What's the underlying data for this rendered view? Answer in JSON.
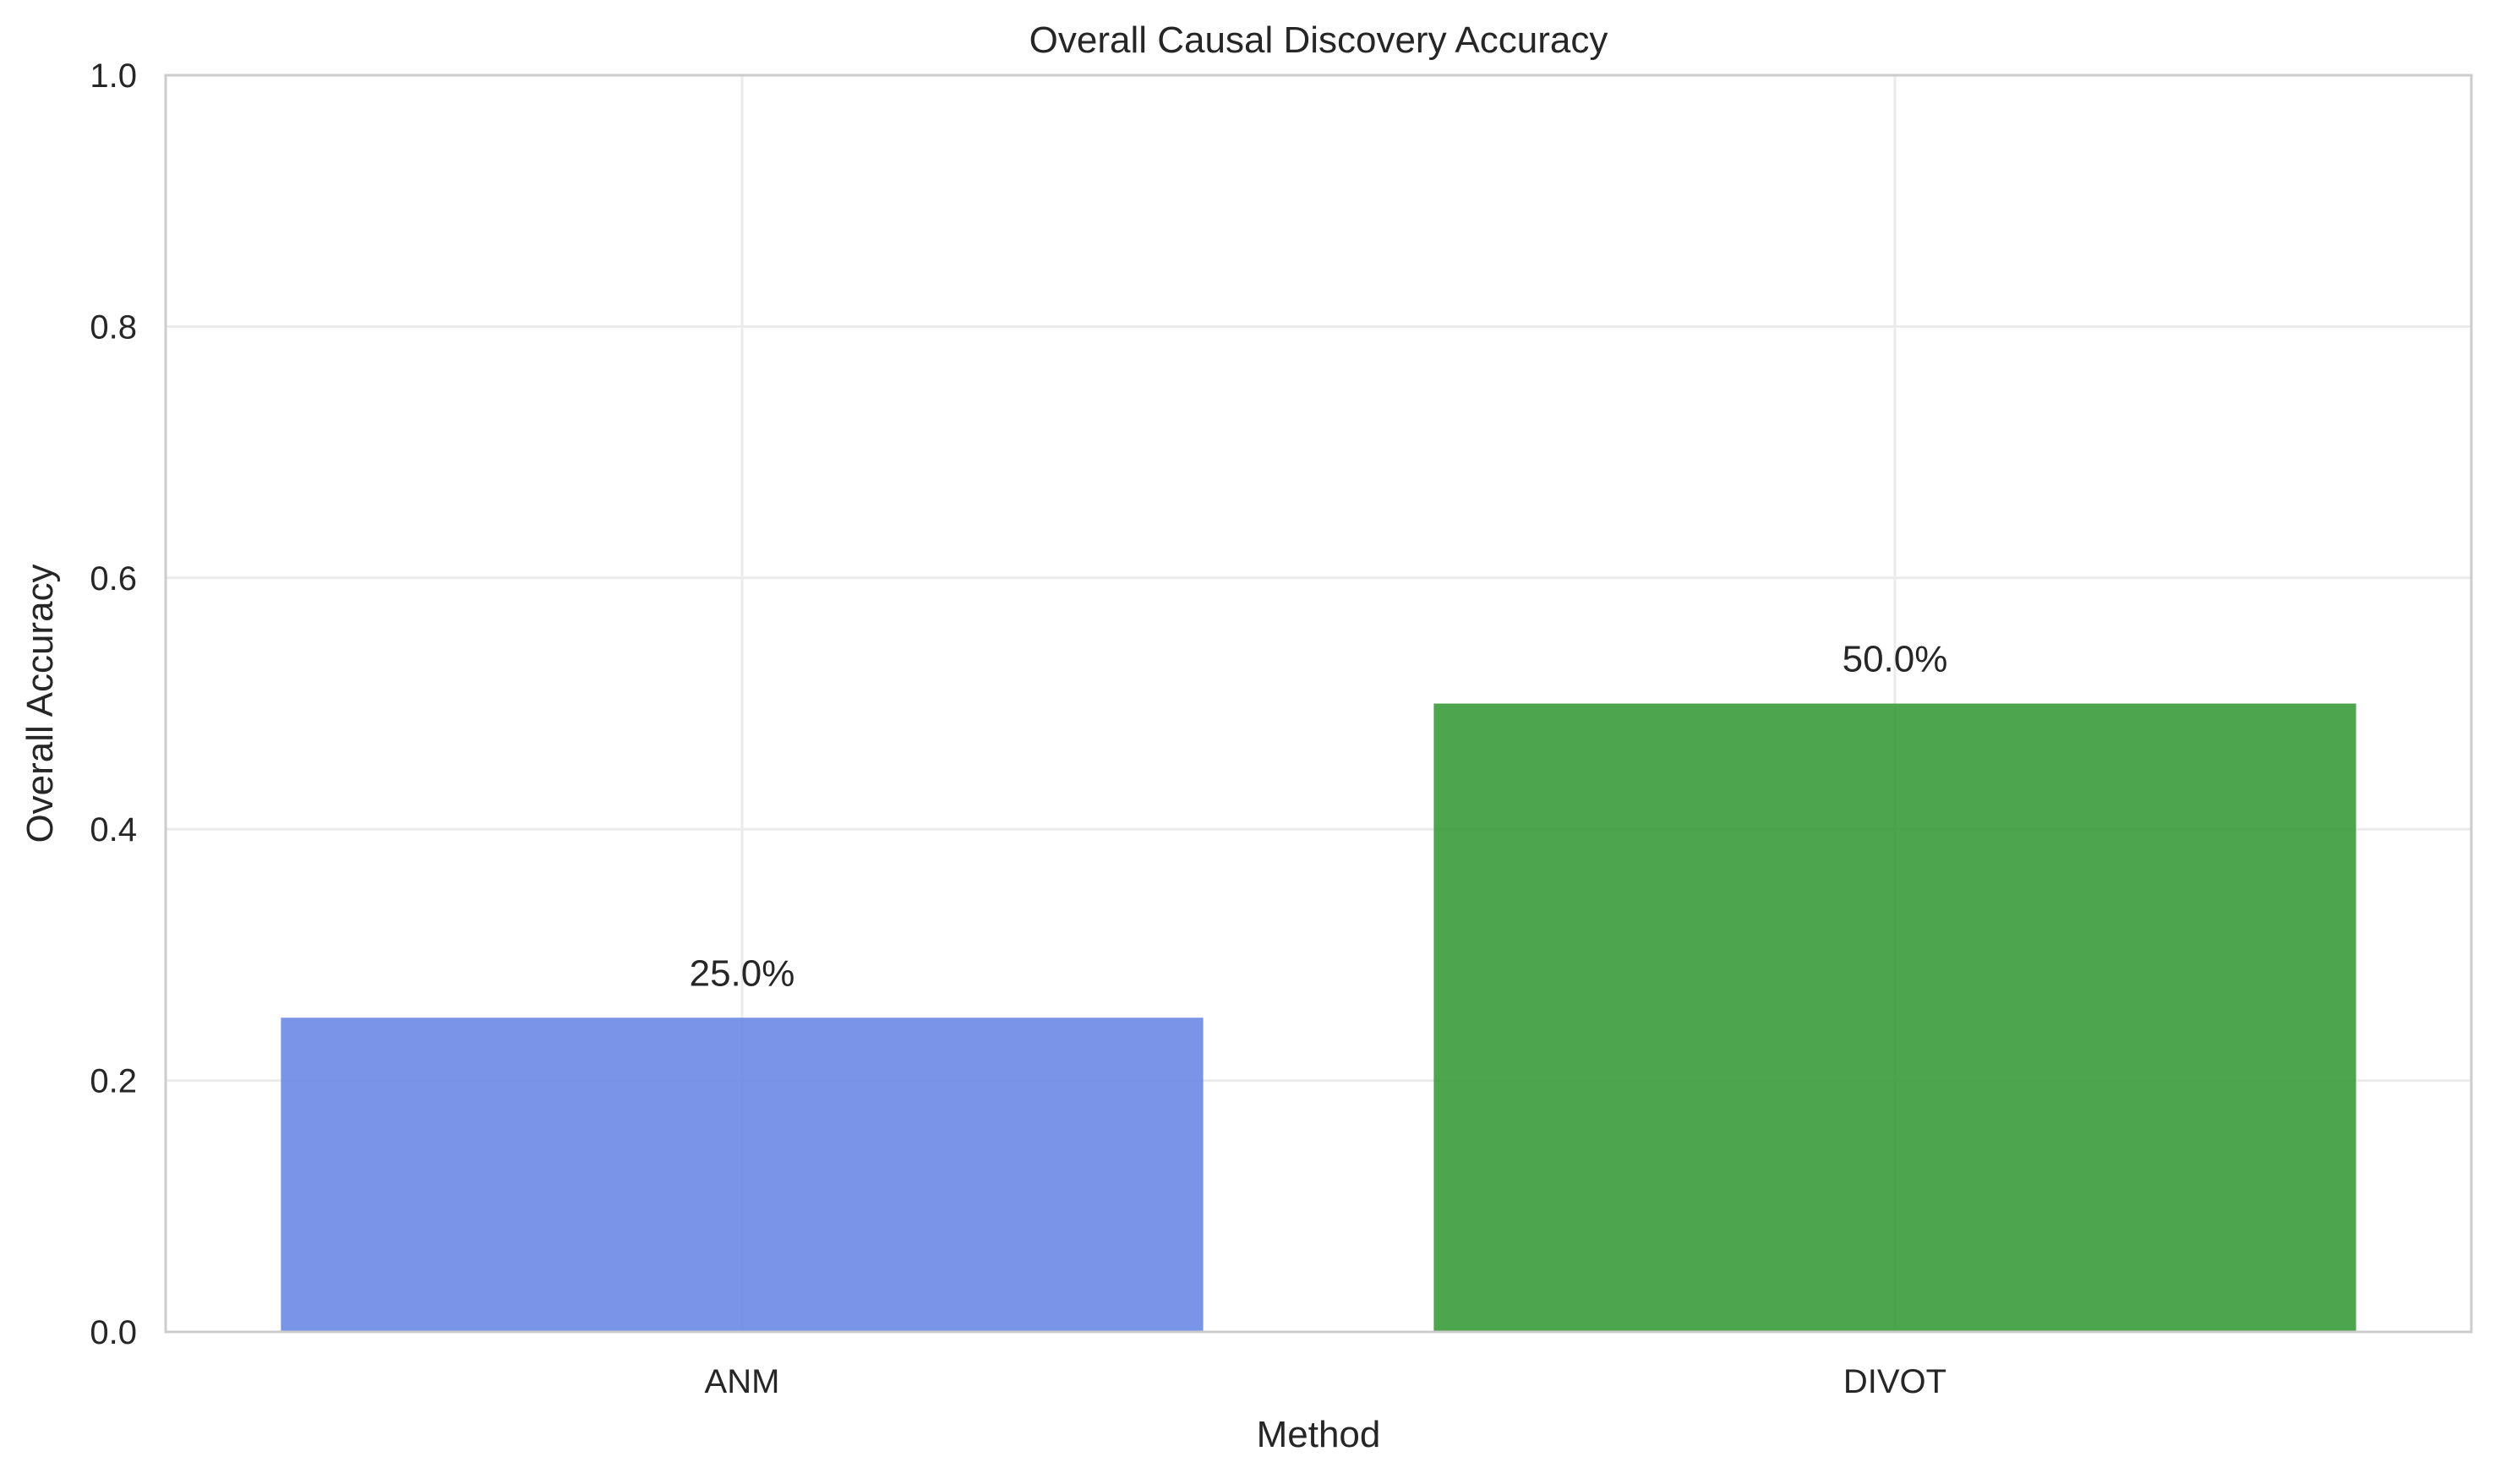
{
  "chart_data": {
    "type": "bar",
    "title": "Overall Causal Discovery Accuracy",
    "xlabel": "Method",
    "ylabel": "Overall Accuracy",
    "categories": [
      "ANM",
      "DIVOT"
    ],
    "values": [
      0.25,
      0.5
    ],
    "data_labels": [
      "25.0%",
      "50.0%"
    ],
    "bar_colors": [
      "#6b88e6",
      "#3a9b3a"
    ],
    "ylim": [
      0,
      1.0
    ],
    "yticks": [
      0.0,
      0.2,
      0.4,
      0.6,
      0.8,
      1.0
    ],
    "ytick_labels": [
      "0.0",
      "0.2",
      "0.4",
      "0.6",
      "0.8",
      "1.0"
    ],
    "grid": true,
    "legend": "none"
  }
}
